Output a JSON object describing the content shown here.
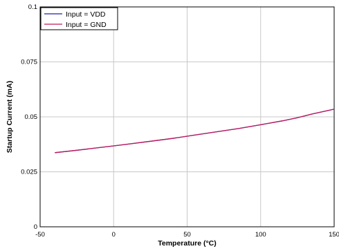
{
  "chart_data": {
    "type": "line",
    "xlabel": "Temperature (°C)",
    "ylabel": "Startup Current (mA)",
    "xlim": [
      -50,
      150
    ],
    "ylim": [
      0,
      0.1
    ],
    "xticks": [
      -50,
      0,
      50,
      100,
      150
    ],
    "yticks": [
      0,
      0.025,
      0.05,
      0.075,
      0.1
    ],
    "xtick_labels": [
      "-50",
      "0",
      "50",
      "100",
      "150"
    ],
    "ytick_labels": [
      "0",
      "0.025",
      "0.05",
      "0.075",
      "0.1"
    ],
    "grid": true,
    "legend_position": "top-left",
    "series": [
      {
        "name": "Input = VDD",
        "color": "#1f1fa8",
        "x": [
          -40,
          -25,
          -10,
          0,
          10,
          25,
          40,
          55,
          70,
          85,
          100,
          115,
          125,
          135,
          150
        ],
        "y": [
          0.0337,
          0.0348,
          0.036,
          0.0368,
          0.0376,
          0.0389,
          0.0402,
          0.0417,
          0.0432,
          0.0447,
          0.0464,
          0.0482,
          0.0496,
          0.0513,
          0.0535
        ]
      },
      {
        "name": "Input = GND",
        "color": "#c0185a",
        "x": [
          -40,
          -25,
          -10,
          0,
          10,
          25,
          40,
          55,
          70,
          85,
          100,
          115,
          125,
          135,
          150
        ],
        "y": [
          0.0337,
          0.0348,
          0.036,
          0.0368,
          0.0376,
          0.0389,
          0.0402,
          0.0417,
          0.0432,
          0.0447,
          0.0464,
          0.0482,
          0.0496,
          0.0513,
          0.0535
        ]
      }
    ]
  }
}
